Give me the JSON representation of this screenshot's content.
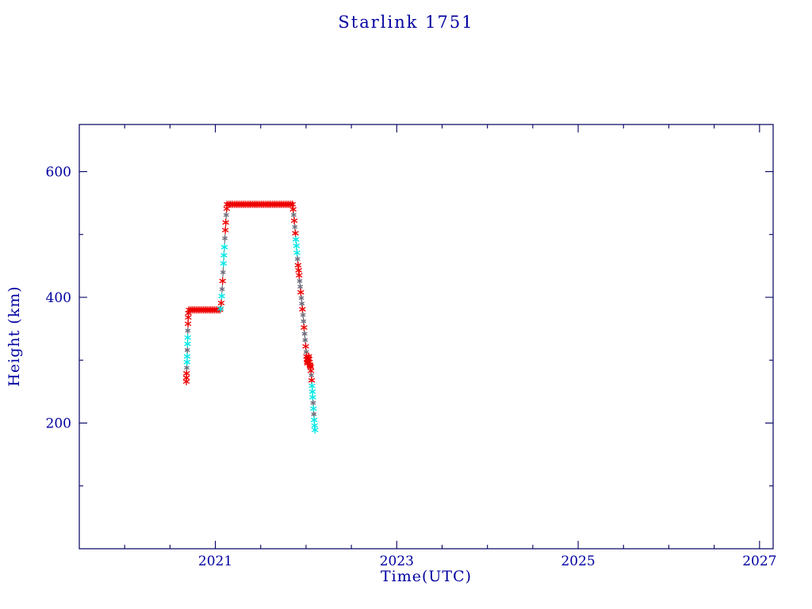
{
  "page": {
    "background": "#ffffff"
  },
  "chart_data": {
    "type": "scatter",
    "title": "Starlink 1751",
    "xlabel": "Time(UTC)",
    "ylabel": "Height (km)",
    "xlim": [
      2019.5,
      2027.15
    ],
    "ylim": [
      0,
      675
    ],
    "xticks": [
      2021,
      2023,
      2025,
      2027
    ],
    "xtick_labels": [
      "2021",
      "2023",
      "2025",
      "2027"
    ],
    "yticks": [
      200,
      400,
      600
    ],
    "ytick_labels": [
      "200",
      "400",
      "600"
    ],
    "x_minor_step": 0.5,
    "y_minor_step": 100,
    "grid": false,
    "legend": null,
    "marker": "asterisk",
    "colors": {
      "axis": "#000060",
      "text": "#0000a0",
      "red_marker": "#ee0000",
      "cyan_marker": "#00e8e8",
      "grey_marker": "#6b6b7a",
      "line": "#55555f"
    },
    "points_format": [
      "year",
      "height_km",
      "color_key"
    ],
    "points": [
      [
        2020.68,
        266,
        "r"
      ],
      [
        2020.681,
        272,
        "r"
      ],
      [
        2020.683,
        279,
        "r"
      ],
      [
        2020.685,
        288,
        "g"
      ],
      [
        2020.687,
        297,
        "c"
      ],
      [
        2020.689,
        306,
        "c"
      ],
      [
        2020.691,
        316,
        "g"
      ],
      [
        2020.693,
        326,
        "c"
      ],
      [
        2020.695,
        336,
        "c"
      ],
      [
        2020.697,
        347,
        "g"
      ],
      [
        2020.699,
        358,
        "r"
      ],
      [
        2020.701,
        368,
        "r"
      ],
      [
        2020.703,
        375,
        "r"
      ],
      [
        2020.71,
        380,
        "r"
      ],
      [
        2020.73,
        380,
        "r"
      ],
      [
        2020.75,
        380,
        "r"
      ],
      [
        2020.77,
        380,
        "r"
      ],
      [
        2020.79,
        380,
        "r"
      ],
      [
        2020.81,
        380,
        "r"
      ],
      [
        2020.83,
        380,
        "r"
      ],
      [
        2020.85,
        380,
        "r"
      ],
      [
        2020.87,
        380,
        "r"
      ],
      [
        2020.89,
        380,
        "r"
      ],
      [
        2020.91,
        380,
        "r"
      ],
      [
        2020.93,
        380,
        "r"
      ],
      [
        2020.95,
        380,
        "r"
      ],
      [
        2020.97,
        380,
        "r"
      ],
      [
        2020.99,
        380,
        "r"
      ],
      [
        2021.01,
        380,
        "r"
      ],
      [
        2021.03,
        380,
        "r"
      ],
      [
        2021.05,
        380,
        "r"
      ],
      [
        2021.058,
        382,
        "c"
      ],
      [
        2021.065,
        391,
        "r"
      ],
      [
        2021.07,
        402,
        "c"
      ],
      [
        2021.075,
        413,
        "g"
      ],
      [
        2021.08,
        426,
        "r"
      ],
      [
        2021.085,
        440,
        "g"
      ],
      [
        2021.09,
        454,
        "c"
      ],
      [
        2021.095,
        467,
        "c"
      ],
      [
        2021.1,
        480,
        "c"
      ],
      [
        2021.105,
        494,
        "g"
      ],
      [
        2021.11,
        507,
        "r"
      ],
      [
        2021.115,
        519,
        "r"
      ],
      [
        2021.12,
        531,
        "g"
      ],
      [
        2021.125,
        541,
        "r"
      ],
      [
        2021.13,
        548,
        "r"
      ],
      [
        2021.15,
        548,
        "r"
      ],
      [
        2021.17,
        548,
        "r"
      ],
      [
        2021.19,
        548,
        "r"
      ],
      [
        2021.21,
        548,
        "r"
      ],
      [
        2021.23,
        548,
        "r"
      ],
      [
        2021.25,
        548,
        "r"
      ],
      [
        2021.27,
        548,
        "r"
      ],
      [
        2021.29,
        548,
        "r"
      ],
      [
        2021.31,
        548,
        "r"
      ],
      [
        2021.33,
        548,
        "r"
      ],
      [
        2021.35,
        548,
        "r"
      ],
      [
        2021.37,
        548,
        "r"
      ],
      [
        2021.39,
        548,
        "r"
      ],
      [
        2021.41,
        548,
        "r"
      ],
      [
        2021.43,
        548,
        "r"
      ],
      [
        2021.45,
        548,
        "r"
      ],
      [
        2021.47,
        548,
        "r"
      ],
      [
        2021.49,
        548,
        "r"
      ],
      [
        2021.51,
        548,
        "r"
      ],
      [
        2021.53,
        548,
        "r"
      ],
      [
        2021.55,
        548,
        "r"
      ],
      [
        2021.57,
        548,
        "r"
      ],
      [
        2021.59,
        548,
        "r"
      ],
      [
        2021.61,
        548,
        "r"
      ],
      [
        2021.63,
        548,
        "r"
      ],
      [
        2021.65,
        548,
        "r"
      ],
      [
        2021.67,
        548,
        "r"
      ],
      [
        2021.69,
        548,
        "r"
      ],
      [
        2021.71,
        548,
        "r"
      ],
      [
        2021.73,
        548,
        "r"
      ],
      [
        2021.75,
        548,
        "r"
      ],
      [
        2021.77,
        548,
        "r"
      ],
      [
        2021.79,
        548,
        "r"
      ],
      [
        2021.81,
        548,
        "r"
      ],
      [
        2021.83,
        548,
        "r"
      ],
      [
        2021.85,
        548,
        "r"
      ],
      [
        2021.858,
        540,
        "r"
      ],
      [
        2021.864,
        531,
        "g"
      ],
      [
        2021.87,
        522,
        "r"
      ],
      [
        2021.876,
        512,
        "g"
      ],
      [
        2021.882,
        502,
        "r"
      ],
      [
        2021.888,
        492,
        "c"
      ],
      [
        2021.894,
        482,
        "c"
      ],
      [
        2021.9,
        471,
        "c"
      ],
      [
        2021.906,
        461,
        "g"
      ],
      [
        2021.912,
        451,
        "r"
      ],
      [
        2021.918,
        443,
        "r"
      ],
      [
        2021.924,
        435,
        "r"
      ],
      [
        2021.93,
        426,
        "g"
      ],
      [
        2021.936,
        417,
        "g"
      ],
      [
        2021.942,
        408,
        "r"
      ],
      [
        2021.948,
        399,
        "g"
      ],
      [
        2021.954,
        390,
        "g"
      ],
      [
        2021.96,
        381,
        "r"
      ],
      [
        2021.966,
        372,
        "g"
      ],
      [
        2021.972,
        362,
        "g"
      ],
      [
        2021.978,
        352,
        "r"
      ],
      [
        2021.984,
        342,
        "g"
      ],
      [
        2021.99,
        332,
        "g"
      ],
      [
        2021.996,
        322,
        "r"
      ],
      [
        2022.002,
        313,
        "g"
      ],
      [
        2022.006,
        306,
        "r"
      ],
      [
        2022.01,
        301,
        "r"
      ],
      [
        2022.014,
        297,
        "r"
      ],
      [
        2022.018,
        295,
        "r"
      ],
      [
        2022.022,
        298,
        "r"
      ],
      [
        2022.026,
        303,
        "r"
      ],
      [
        2022.03,
        306,
        "r"
      ],
      [
        2022.034,
        302,
        "r"
      ],
      [
        2022.038,
        297,
        "r"
      ],
      [
        2022.042,
        293,
        "r"
      ],
      [
        2022.046,
        291,
        "r"
      ],
      [
        2022.05,
        289,
        "r"
      ],
      [
        2022.054,
        283,
        "r"
      ],
      [
        2022.058,
        276,
        "g"
      ],
      [
        2022.062,
        268,
        "r"
      ],
      [
        2022.066,
        259,
        "c"
      ],
      [
        2022.07,
        250,
        "c"
      ],
      [
        2022.074,
        241,
        "c"
      ],
      [
        2022.078,
        232,
        "g"
      ],
      [
        2022.082,
        223,
        "c"
      ],
      [
        2022.086,
        214,
        "g"
      ],
      [
        2022.09,
        205,
        "c"
      ],
      [
        2022.094,
        196,
        "c"
      ],
      [
        2022.098,
        189,
        "c"
      ]
    ]
  }
}
